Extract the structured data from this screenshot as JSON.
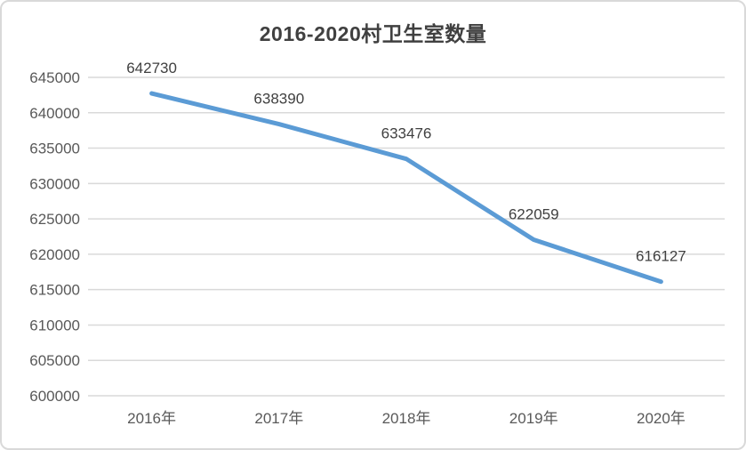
{
  "chart_data": {
    "type": "line",
    "title": "2016-2020村卫生室数量",
    "categories": [
      "2016年",
      "2017年",
      "2018年",
      "2019年",
      "2020年"
    ],
    "values": [
      642730,
      638390,
      633476,
      622059,
      616127
    ],
    "data_labels": [
      "642730",
      "638390",
      "633476",
      "622059",
      "616127"
    ],
    "yticks": [
      "600000",
      "605000",
      "610000",
      "615000",
      "620000",
      "625000",
      "630000",
      "635000",
      "640000",
      "645000"
    ],
    "ylim": [
      600000,
      645000
    ],
    "ytick_step": 5000,
    "xlabel": "",
    "ylabel": "",
    "grid": true,
    "legend": "none",
    "colors": {
      "line": "#5B9BD5",
      "gridline": "#D9D9D9",
      "axis_text": "#595959",
      "title_text": "#404040",
      "data_label_text": "#404040",
      "frame_border": "#D9D9D9",
      "background": "#FFFFFF"
    }
  }
}
